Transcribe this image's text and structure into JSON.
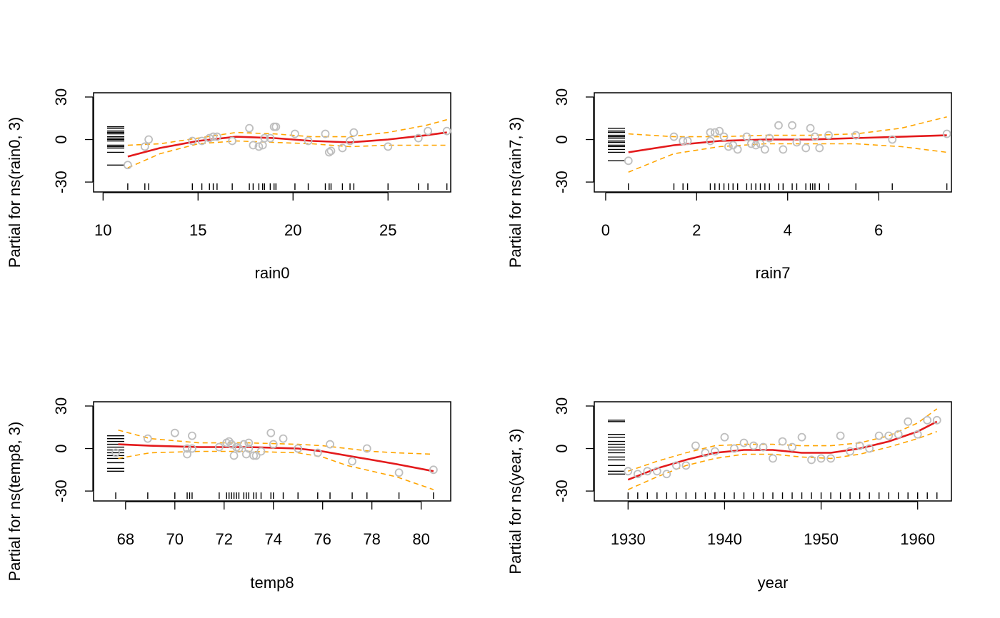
{
  "chart_data": [
    {
      "type": "scatter",
      "xlabel": "rain0",
      "ylabel": "Partial for ns(rain0, 3)",
      "xlim": [
        9.5,
        28.3
      ],
      "ylim": [
        -37,
        33
      ],
      "xticks": [
        10,
        15,
        20,
        25
      ],
      "yticks": [
        -30,
        0,
        30
      ],
      "colors": {
        "fit": "#e31a1c",
        "band": "#ffa500",
        "points": "#bebebe"
      },
      "fit": {
        "x": [
          11.3,
          13,
          15,
          17,
          19,
          21,
          23,
          25,
          27,
          28.1
        ],
        "y": [
          -12,
          -6,
          -1,
          2,
          1,
          -1,
          -2,
          0,
          3,
          5
        ]
      },
      "band_upper": {
        "x": [
          11.3,
          13,
          15,
          17,
          19,
          21,
          23,
          25,
          27,
          28.1
        ],
        "y": [
          -4,
          -3,
          1,
          5,
          4,
          2,
          2,
          5,
          10,
          14
        ]
      },
      "band_lower": {
        "x": [
          11.3,
          13,
          15,
          17,
          19,
          21,
          23,
          25,
          27,
          28.1
        ],
        "y": [
          -20,
          -10,
          -3,
          -1,
          -2,
          -3,
          -5,
          -4,
          -4,
          -4
        ]
      },
      "points": {
        "x": [
          11.3,
          12.2,
          12.4,
          14.7,
          15.2,
          15.6,
          15.8,
          16.0,
          16.8,
          17.7,
          17.9,
          18.2,
          18.4,
          18.5,
          18.8,
          19.0,
          19.1,
          20.1,
          20.8,
          21.7,
          21.9,
          22.0,
          22.6,
          23.0,
          23.2,
          25.0,
          26.6,
          27.1,
          28.1
        ],
        "y": [
          -18,
          -5,
          0,
          -1,
          -1,
          1,
          2,
          2,
          -1,
          8,
          -4,
          -5,
          -4,
          1,
          1,
          9,
          9,
          4,
          -1,
          4,
          -9,
          -8,
          -6,
          -1,
          5,
          -5,
          1,
          6,
          6
        ]
      },
      "rug_x": [
        11.3,
        12.2,
        12.4,
        14.7,
        15.2,
        15.6,
        15.8,
        16.0,
        16.8,
        17.7,
        17.9,
        18.2,
        18.4,
        18.5,
        18.8,
        19.0,
        19.1,
        20.1,
        20.8,
        21.7,
        21.9,
        22.0,
        22.6,
        23.0,
        23.2,
        25.0,
        26.6,
        27.1,
        28.1
      ],
      "rug_y": [
        -18,
        -9,
        -6,
        -5,
        -4,
        -1,
        0,
        1,
        2,
        4,
        5,
        6,
        8,
        9
      ]
    },
    {
      "type": "scatter",
      "xlabel": "rain7",
      "ylabel": "Partial for ns(rain7, 3)",
      "xlim": [
        -0.25,
        7.6
      ],
      "ylim": [
        -37,
        33
      ],
      "xticks": [
        0,
        2,
        4,
        6
      ],
      "yticks": [
        -30,
        0,
        30
      ],
      "colors": {
        "fit": "#e31a1c",
        "band": "#ffa500",
        "points": "#bebebe"
      },
      "fit": {
        "x": [
          0.5,
          1.5,
          2.5,
          3.5,
          4.5,
          5.5,
          6.5,
          7.5
        ],
        "y": [
          -9,
          -4,
          -1,
          0,
          0,
          1,
          2,
          3
        ]
      },
      "band_upper": {
        "x": [
          0.5,
          1.5,
          2.5,
          3.5,
          4.5,
          5.5,
          6.5,
          7.5
        ],
        "y": [
          4,
          2,
          2,
          3,
          3,
          4,
          8,
          16
        ]
      },
      "band_lower": {
        "x": [
          0.5,
          1.5,
          2.5,
          3.5,
          4.5,
          5.5,
          6.5,
          7.5
        ],
        "y": [
          -23,
          -10,
          -5,
          -3,
          -3,
          -3,
          -5,
          -9
        ]
      },
      "points": {
        "x": [
          0.5,
          1.5,
          1.7,
          1.8,
          2.3,
          2.3,
          2.4,
          2.5,
          2.6,
          2.7,
          2.8,
          2.9,
          3.1,
          3.2,
          3.3,
          3.4,
          3.5,
          3.6,
          3.8,
          3.9,
          4.1,
          4.2,
          4.4,
          4.5,
          4.6,
          4.7,
          4.9,
          5.5,
          6.3,
          7.5
        ],
        "y": [
          -15,
          2,
          -1,
          -1,
          -1,
          5,
          5,
          6,
          2,
          -5,
          -4,
          -7,
          2,
          -3,
          -4,
          -3,
          -7,
          1,
          10,
          -7,
          10,
          -2,
          -6,
          8,
          2,
          -6,
          3,
          3,
          0,
          4
        ]
      },
      "rug_x": [
        0.5,
        1.5,
        1.7,
        1.8,
        2.3,
        2.4,
        2.5,
        2.6,
        2.7,
        2.8,
        2.9,
        3.1,
        3.2,
        3.3,
        3.4,
        3.5,
        3.6,
        3.8,
        3.9,
        4.1,
        4.2,
        4.4,
        4.5,
        4.55,
        4.6,
        4.7,
        4.9,
        5.5,
        6.3,
        7.5
      ],
      "rug_y": [
        -15,
        -9,
        -7,
        -5,
        -4,
        -2,
        -1,
        1,
        2,
        3,
        5,
        6,
        8
      ]
    },
    {
      "type": "scatter",
      "xlabel": "temp8",
      "ylabel": "Partial for ns(temp8, 3)",
      "xlim": [
        66.7,
        81.2
      ],
      "ylim": [
        -37,
        33
      ],
      "xticks": [
        68,
        70,
        72,
        74,
        76,
        78,
        80
      ],
      "yticks": [
        -30,
        0,
        30
      ],
      "colors": {
        "fit": "#e31a1c",
        "band": "#ffa500",
        "points": "#bebebe"
      },
      "fit": {
        "x": [
          67.7,
          69,
          71,
          73,
          75,
          76,
          77,
          78,
          79,
          80.5
        ],
        "y": [
          3,
          2,
          1,
          1,
          0,
          -2,
          -5,
          -8,
          -11,
          -16
        ]
      },
      "band_upper": {
        "x": [
          67.7,
          69,
          71,
          73,
          75,
          76,
          77,
          78,
          79,
          80.5
        ],
        "y": [
          13,
          7,
          4,
          4,
          3,
          2,
          0,
          -2,
          -3,
          -4
        ]
      },
      "band_lower": {
        "x": [
          67.7,
          69,
          71,
          73,
          75,
          76,
          77,
          78,
          79,
          80.5
        ],
        "y": [
          -7,
          -3,
          -2,
          -2,
          -3,
          -6,
          -12,
          -16,
          -20,
          -29
        ]
      },
      "points": {
        "x": [
          67.6,
          68.9,
          70.0,
          70.5,
          70.5,
          70.7,
          70.7,
          71.8,
          72.1,
          72.2,
          72.3,
          72.4,
          72.5,
          72.6,
          72.8,
          72.9,
          73.0,
          73.0,
          73.2,
          73.3,
          73.5,
          73.9,
          74.0,
          74.4,
          75.0,
          75.8,
          76.3,
          77.2,
          77.8,
          79.1,
          80.5
        ],
        "y": [
          -3,
          7,
          11,
          -4,
          0,
          0,
          9,
          1,
          4,
          5,
          3,
          -5,
          1,
          0,
          3,
          -4,
          4,
          0,
          -5,
          -5,
          -2,
          11,
          3,
          7,
          0,
          -3,
          3,
          -9,
          0,
          -17,
          -15
        ]
      },
      "rug_x": [
        67.6,
        68.9,
        70.0,
        70.5,
        70.6,
        70.7,
        71.8,
        72.1,
        72.2,
        72.3,
        72.4,
        72.5,
        72.6,
        72.8,
        72.9,
        73.0,
        73.2,
        73.3,
        73.5,
        73.9,
        74.0,
        74.4,
        75.0,
        75.8,
        76.3,
        77.2,
        77.8,
        79.1,
        80.5
      ],
      "rug_y": [
        -16,
        -14,
        -10,
        -7,
        -5,
        -3,
        -1,
        1,
        3,
        5,
        7,
        9
      ]
    },
    {
      "type": "scatter",
      "xlabel": "year",
      "ylabel": "Partial for ns(year, 3)",
      "xlim": [
        1926.5,
        1963.5
      ],
      "ylim": [
        -37,
        33
      ],
      "xticks": [
        1930,
        1940,
        1950,
        1960
      ],
      "yticks": [
        -30,
        0,
        30
      ],
      "colors": {
        "fit": "#e31a1c",
        "band": "#ffa500",
        "points": "#bebebe"
      },
      "fit": {
        "x": [
          1930,
          1933,
          1936,
          1939,
          1942,
          1945,
          1948,
          1951,
          1954,
          1957,
          1960,
          1962
        ],
        "y": [
          -22,
          -14,
          -8,
          -3,
          -1,
          -1,
          -3,
          -3,
          0,
          5,
          12,
          19
        ]
      },
      "band_upper": {
        "x": [
          1930,
          1933,
          1936,
          1939,
          1942,
          1945,
          1948,
          1951,
          1954,
          1957,
          1960,
          1962
        ],
        "y": [
          -16,
          -9,
          -3,
          2,
          3,
          3,
          2,
          2,
          4,
          9,
          18,
          28
        ]
      },
      "band_lower": {
        "x": [
          1930,
          1933,
          1936,
          1939,
          1942,
          1945,
          1948,
          1951,
          1954,
          1957,
          1960,
          1962
        ],
        "y": [
          -29,
          -20,
          -12,
          -7,
          -4,
          -4,
          -6,
          -7,
          -4,
          1,
          7,
          12
        ]
      },
      "points": {
        "x": [
          1930,
          1931,
          1932,
          1933,
          1934,
          1935,
          1936,
          1937,
          1938,
          1939,
          1940,
          1941,
          1942,
          1943,
          1944,
          1945,
          1946,
          1947,
          1948,
          1949,
          1950,
          1951,
          1952,
          1953,
          1954,
          1955,
          1956,
          1957,
          1958,
          1959,
          1960,
          1961,
          1962
        ],
        "y": [
          -16,
          -18,
          -16,
          -16,
          -18,
          -12,
          -12,
          2,
          -3,
          -2,
          8,
          0,
          4,
          2,
          1,
          -7,
          5,
          1,
          8,
          -8,
          -7,
          -7,
          9,
          -2,
          2,
          0,
          9,
          9,
          10,
          19,
          10,
          20,
          20
        ]
      },
      "rug_x": [
        1930,
        1931,
        1932,
        1933,
        1934,
        1935,
        1936,
        1937,
        1938,
        1939,
        1940,
        1941,
        1942,
        1943,
        1944,
        1945,
        1946,
        1947,
        1948,
        1949,
        1950,
        1951,
        1952,
        1953,
        1954,
        1955,
        1956,
        1957,
        1958,
        1959,
        1960,
        1961,
        1962
      ],
      "rug_y": [
        -18,
        -16,
        -12,
        -8,
        -6,
        -3,
        -1,
        1,
        3,
        5,
        8,
        10,
        19,
        20
      ]
    }
  ]
}
